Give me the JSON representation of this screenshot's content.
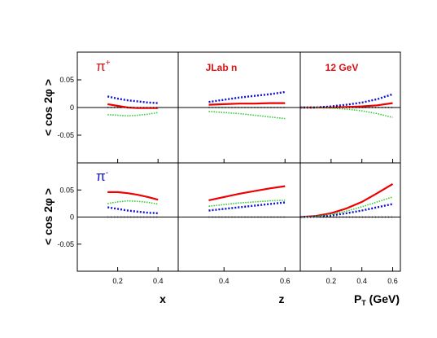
{
  "chart_data": {
    "type": "line",
    "layout": "2x3 panel grid, shared axes",
    "ylabel": "< cos 2φ >",
    "ylim": [
      -0.1,
      0.1
    ],
    "yticks": [
      "0.05",
      "0",
      "-0.05"
    ],
    "grid": false,
    "legend": "none",
    "rows": [
      {
        "hadron": "π",
        "charge": "+",
        "color": "#dd1111"
      },
      {
        "hadron": "π",
        "charge": "-",
        "color": "#1111cc"
      }
    ],
    "columns": [
      {
        "xlabel": "x",
        "xlim": [
          0.0,
          0.5
        ],
        "xticks": [
          "0.2",
          "0.4"
        ],
        "annotation": ""
      },
      {
        "xlabel": "z",
        "xlim": [
          0.25,
          0.65
        ],
        "xticks": [
          "0.4",
          "0.6"
        ],
        "annotation": "JLab n"
      },
      {
        "xlabel": "P",
        "xlabel_sub": "T",
        "xlabel_unit": " (GeV)",
        "xlim": [
          0.0,
          0.65
        ],
        "xticks": [
          "0.2",
          "0.4",
          "0.6"
        ],
        "annotation": "12 GeV"
      }
    ],
    "series_styles": [
      {
        "color": "#ee0000",
        "dash": "",
        "width": 2.2
      },
      {
        "color": "#1111cc",
        "dash": "2,2",
        "width": 2.4
      },
      {
        "color": "#33cc33",
        "dash": "1.5,1.5",
        "width": 1.6
      },
      {
        "color": "#000000",
        "dash": "1,3",
        "width": 1.4
      }
    ],
    "panels": [
      {
        "row": 0,
        "col": 0,
        "x": [
          0.15,
          0.2,
          0.25,
          0.3,
          0.35,
          0.4
        ],
        "series": [
          [
            0.006,
            0.003,
            0.0,
            -0.001,
            -0.001,
            -0.001
          ],
          [
            0.02,
            0.016,
            0.013,
            0.011,
            0.009,
            0.008
          ],
          [
            -0.013,
            -0.014,
            -0.015,
            -0.014,
            -0.012,
            -0.009
          ],
          [
            0,
            0,
            0,
            0,
            0,
            0
          ]
        ]
      },
      {
        "row": 0,
        "col": 1,
        "x": [
          0.35,
          0.4,
          0.45,
          0.5,
          0.55,
          0.6
        ],
        "series": [
          [
            0.005,
            0.006,
            0.007,
            0.007,
            0.008,
            0.008
          ],
          [
            0.01,
            0.014,
            0.018,
            0.021,
            0.024,
            0.028
          ],
          [
            -0.007,
            -0.009,
            -0.011,
            -0.014,
            -0.017,
            -0.02
          ],
          [
            0,
            0,
            0,
            0,
            0,
            0
          ]
        ]
      },
      {
        "row": 0,
        "col": 2,
        "x": [
          0.0,
          0.1,
          0.2,
          0.3,
          0.4,
          0.5,
          0.6
        ],
        "series": [
          [
            0.0,
            0.0,
            0.0,
            0.001,
            0.002,
            0.004,
            0.008
          ],
          [
            0.0,
            0.0,
            0.002,
            0.005,
            0.009,
            0.015,
            0.024
          ],
          [
            0.0,
            0.0,
            -0.001,
            -0.003,
            -0.006,
            -0.011,
            -0.018
          ],
          [
            0,
            0,
            0,
            0,
            0,
            0,
            0
          ]
        ]
      },
      {
        "row": 1,
        "col": 0,
        "x": [
          0.15,
          0.2,
          0.25,
          0.3,
          0.35,
          0.4
        ],
        "series": [
          [
            0.046,
            0.046,
            0.044,
            0.041,
            0.037,
            0.032
          ],
          [
            0.018,
            0.015,
            0.012,
            0.01,
            0.008,
            0.007
          ],
          [
            0.025,
            0.028,
            0.03,
            0.029,
            0.027,
            0.024
          ],
          [
            0,
            0,
            0,
            0,
            0,
            0
          ]
        ]
      },
      {
        "row": 1,
        "col": 1,
        "x": [
          0.35,
          0.4,
          0.45,
          0.5,
          0.55,
          0.6
        ],
        "series": [
          [
            0.031,
            0.037,
            0.043,
            0.048,
            0.053,
            0.057
          ],
          [
            0.012,
            0.015,
            0.018,
            0.021,
            0.024,
            0.027
          ],
          [
            0.02,
            0.023,
            0.026,
            0.028,
            0.03,
            0.031
          ],
          [
            0,
            0,
            0,
            0,
            0,
            0
          ]
        ]
      },
      {
        "row": 1,
        "col": 2,
        "x": [
          0.0,
          0.1,
          0.2,
          0.3,
          0.4,
          0.5,
          0.6
        ],
        "series": [
          [
            0.0,
            0.002,
            0.007,
            0.016,
            0.028,
            0.044,
            0.061
          ],
          [
            0.0,
            0.001,
            0.003,
            0.007,
            0.012,
            0.018,
            0.024
          ],
          [
            0.0,
            0.001,
            0.005,
            0.011,
            0.019,
            0.028,
            0.037
          ],
          [
            0,
            0,
            0,
            0,
            0,
            0,
            0
          ]
        ]
      }
    ]
  }
}
